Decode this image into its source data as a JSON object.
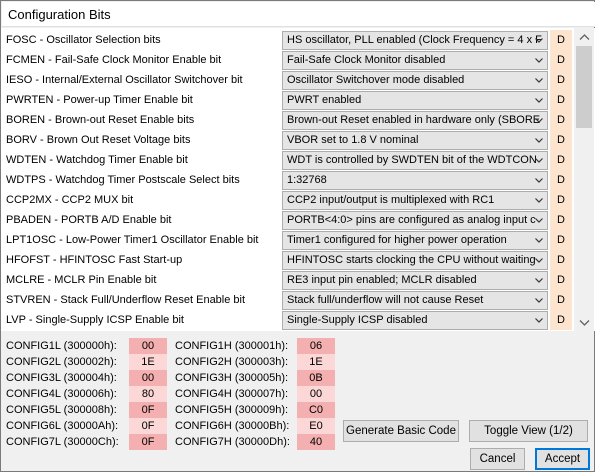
{
  "window": {
    "title": "Configuration Bits"
  },
  "settings": [
    {
      "label": "FOSC - Oscillator Selection bits",
      "value": "HS oscillator, PLL enabled (Clock Frequency = 4 x F",
      "flag": "D"
    },
    {
      "label": "FCMEN - Fail-Safe Clock Monitor Enable bit",
      "value": "Fail-Safe Clock Monitor disabled",
      "flag": "D"
    },
    {
      "label": "IESO - Internal/External Oscillator Switchover bit",
      "value": "Oscillator Switchover mode disabled",
      "flag": "D"
    },
    {
      "label": "PWRTEN - Power-up Timer Enable bit",
      "value": "PWRT enabled",
      "flag": "D"
    },
    {
      "label": "BOREN - Brown-out Reset Enable bits",
      "value": "Brown-out Reset enabled in hardware only (SBORE",
      "flag": "D"
    },
    {
      "label": "BORV - Brown Out Reset Voltage bits",
      "value": "VBOR set to 1.8 V nominal",
      "flag": "D"
    },
    {
      "label": "WDTEN - Watchdog Timer Enable bit",
      "value": "WDT is controlled by SWDTEN bit of the WDTCON",
      "flag": "D"
    },
    {
      "label": "WDTPS - Watchdog Timer Postscale Select bits",
      "value": "1:32768",
      "flag": "D"
    },
    {
      "label": "CCP2MX - CCP2 MUX bit",
      "value": "CCP2 input/output is multiplexed with RC1",
      "flag": "D"
    },
    {
      "label": "PBADEN - PORTB A/D Enable bit",
      "value": "PORTB<4:0> pins are configured as analog input c",
      "flag": "D"
    },
    {
      "label": "LPT1OSC - Low-Power Timer1 Oscillator Enable bit",
      "value": "Timer1 configured for higher power operation",
      "flag": "D"
    },
    {
      "label": "HFOFST - HFINTOSC Fast Start-up",
      "value": "HFINTOSC starts clocking the CPU without waiting",
      "flag": "D"
    },
    {
      "label": "MCLRE - MCLR Pin Enable bit",
      "value": "RE3 input pin enabled; MCLR disabled",
      "flag": "D"
    },
    {
      "label": "STVREN - Stack Full/Underflow Reset Enable bit",
      "value": "Stack full/underflow will not cause Reset",
      "flag": "D"
    },
    {
      "label": "LVP - Single-Supply ICSP Enable bit",
      "value": "Single-Supply ICSP disabled",
      "flag": "D"
    }
  ],
  "config_left": [
    {
      "label": "CONFIG1L (300000h):",
      "value": "00"
    },
    {
      "label": "CONFIG2L (300002h):",
      "value": "1E"
    },
    {
      "label": "CONFIG3L (300004h):",
      "value": "00"
    },
    {
      "label": "CONFIG4L (300006h):",
      "value": "80"
    },
    {
      "label": "CONFIG5L (300008h):",
      "value": "0F"
    },
    {
      "label": "CONFIG6L (30000Ah):",
      "value": "0F"
    },
    {
      "label": "CONFIG7L (30000Ch):",
      "value": "0F"
    }
  ],
  "config_right": [
    {
      "label": "CONFIG1H (300001h):",
      "value": "06"
    },
    {
      "label": "CONFIG2H (300003h):",
      "value": "1E"
    },
    {
      "label": "CONFIG3H (300005h):",
      "value": "0B"
    },
    {
      "label": "CONFIG4H (300007h):",
      "value": "00"
    },
    {
      "label": "CONFIG5H (300009h):",
      "value": "C0"
    },
    {
      "label": "CONFIG6H (30000Bh):",
      "value": "E0"
    },
    {
      "label": "CONFIG7H (30000Dh):",
      "value": "40"
    }
  ],
  "buttons": {
    "generate": "Generate Basic Code",
    "toggle": "Toggle View  (1/2)",
    "cancel": "Cancel",
    "accept": "Accept"
  },
  "icons": {
    "dropdown": "chevron-down-icon",
    "scroll_up": "scroll-up-arrow-icon",
    "scroll_down": "scroll-down-arrow-icon"
  },
  "colors": {
    "flag_cell": "#fde4cf",
    "config_value_odd": "#f4b0b0",
    "config_value_even": "#fcd7d7",
    "accept_border": "#0078d7"
  }
}
